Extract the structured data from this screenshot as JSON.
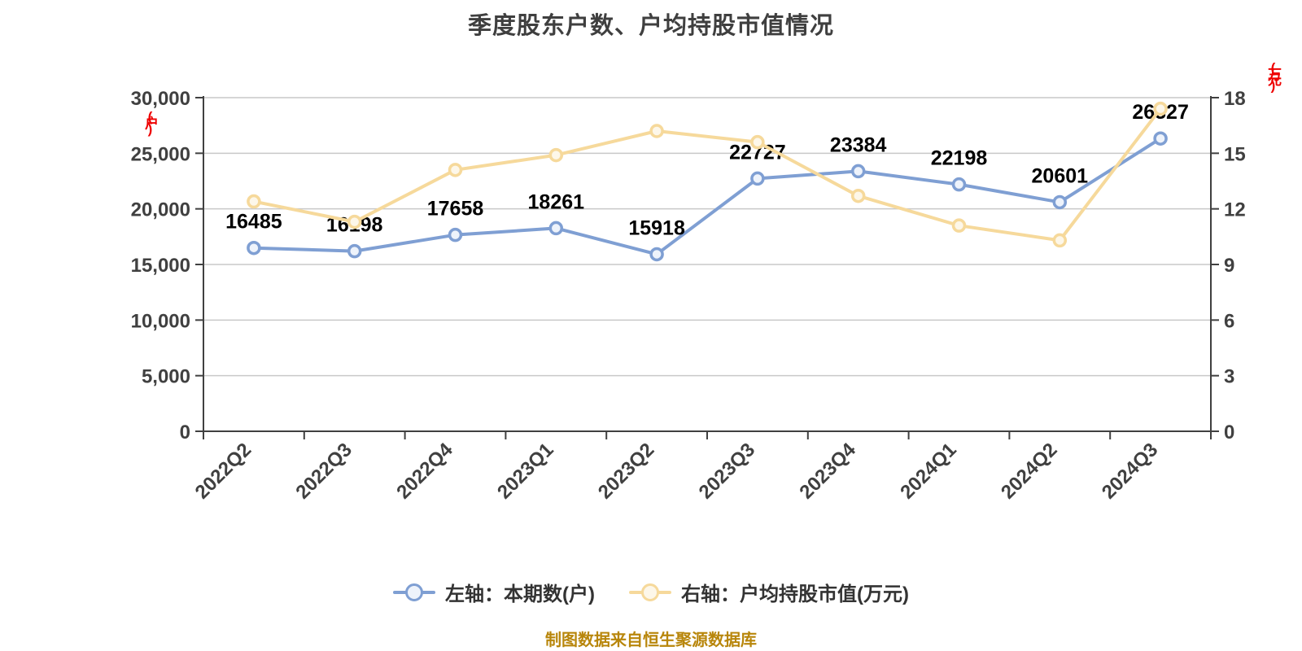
{
  "title": "季度股东户数、户均持股市值情况",
  "footer_note": "制图数据来自恒生聚源数据库",
  "colors": {
    "blue_series": "#7F9FD3",
    "yellow_series": "#F6D99B",
    "gridline": "#C9C9C9",
    "axis_line": "#404040",
    "tick_text": "#404040",
    "data_label": "#000000",
    "axis_unit_red": "#EE0000",
    "footer_gold": "#B8860B",
    "title_text": "#3F3F3F",
    "legend_text": "#333333"
  },
  "chart_data": {
    "type": "line",
    "title": "季度股东户数、户均持股市值情况",
    "categories": [
      "2022Q2",
      "2022Q3",
      "2022Q4",
      "2023Q1",
      "2023Q2",
      "2023Q3",
      "2023Q4",
      "2024Q1",
      "2024Q2",
      "2024Q3"
    ],
    "series": [
      {
        "name": "左轴：本期数(户)",
        "axis": "left",
        "color": "#7F9FD3",
        "marker_fill": "#EEF3FB",
        "values": [
          16485,
          16198,
          17658,
          18261,
          15918,
          22727,
          23384,
          22198,
          20601,
          26327
        ],
        "data_labels": true
      },
      {
        "name": "右轴：户均持股市值(万元)",
        "axis": "right",
        "color": "#F6D99B",
        "marker_fill": "#FDF7E9",
        "values": [
          12.4,
          11.3,
          14.1,
          14.9,
          16.2,
          15.6,
          12.7,
          11.1,
          10.3,
          17.4
        ],
        "data_labels": false,
        "estimated": true
      }
    ],
    "left_axis": {
      "unit": "(户)",
      "min": 0,
      "max": 30000,
      "step": 5000,
      "tick_labels": [
        "0",
        "5,000",
        "10,000",
        "15,000",
        "20,000",
        "25,000",
        "30,000"
      ]
    },
    "right_axis": {
      "unit": "(万元)",
      "min": 0,
      "max": 18,
      "step": 3,
      "tick_labels": [
        "0",
        "3",
        "6",
        "9",
        "12",
        "15",
        "18"
      ]
    },
    "grid": true,
    "legend_position": "bottom"
  },
  "legend": {
    "items": [
      {
        "label": "左轴：本期数(户)",
        "color": "#7F9FD3",
        "marker_fill": "#EEF3FB"
      },
      {
        "label": "右轴：户均持股市值(万元)",
        "color": "#F6D99B",
        "marker_fill": "#FDF7E9"
      }
    ]
  }
}
